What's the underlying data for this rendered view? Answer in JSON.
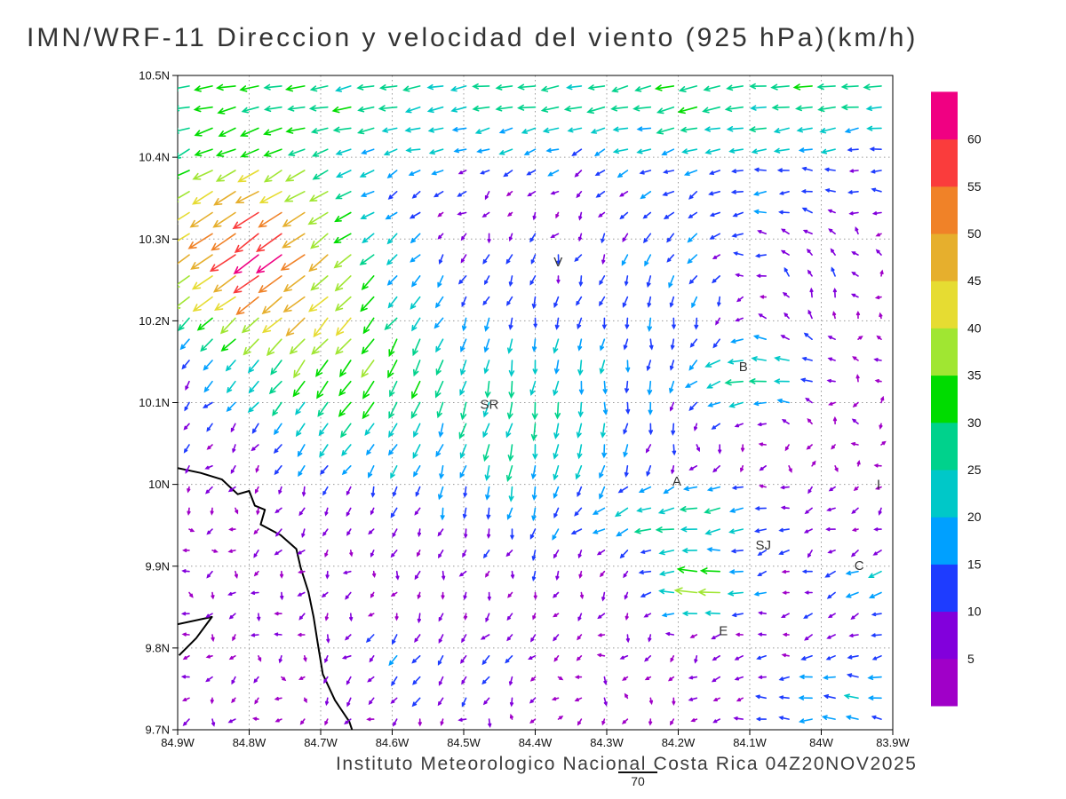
{
  "title": "IMN/WRF-11 Direccion y velocidad del viento (925 hPa)(km/h)",
  "footer": "Instituto Meteorologico Nacional Costa Rica 04Z20NOV2025",
  "annotation": "70",
  "colorbar": {
    "labels": [
      "5",
      "10",
      "15",
      "20",
      "25",
      "30",
      "35",
      "40",
      "45",
      "50",
      "55",
      "60"
    ]
  },
  "chart_data": {
    "type": "vector_field",
    "title": "IMN/WRF-11 Direccion y velocidad del viento (925 hPa)(km/h)",
    "units": "km/h",
    "level": "925 hPa",
    "valid_time": "04Z20NOV2025",
    "lon_range": [
      -84.9,
      -83.9
    ],
    "lat_range": [
      9.7,
      10.5
    ],
    "grid": {
      "nx": 31,
      "ny": 31
    },
    "grid_style": "dotted",
    "legend_position": "right",
    "xticks": {
      "labels": [
        "84.9W",
        "84.8W",
        "84.7W",
        "84.6W",
        "84.5W",
        "84.4W",
        "84.3W",
        "84.2W",
        "84.1W",
        "84W",
        "83.9W"
      ],
      "values": [
        -84.9,
        -84.8,
        -84.7,
        -84.6,
        -84.5,
        -84.4,
        -84.3,
        -84.2,
        -84.1,
        -84.0,
        -83.9
      ]
    },
    "yticks": {
      "labels": [
        "10.5N",
        "10.4N",
        "10.3N",
        "10.2N",
        "10.1N",
        "10N",
        "9.9N",
        "9.8N",
        "9.7N"
      ],
      "values": [
        10.5,
        10.4,
        10.3,
        10.2,
        10.1,
        10.0,
        9.9,
        9.8,
        9.7
      ]
    },
    "speed_levels": [
      5,
      10,
      15,
      20,
      25,
      30,
      35,
      40,
      45,
      50,
      55,
      60
    ],
    "speed_colors": [
      "#a000c8",
      "#8200dc",
      "#1e3cff",
      "#00a0ff",
      "#00c8c8",
      "#00d28c",
      "#00dc00",
      "#a0e632",
      "#e6dc32",
      "#e6af2d",
      "#f08228",
      "#fa3c3c",
      "#f00082"
    ],
    "stations": [
      {
        "label": "V",
        "lon": -84.368,
        "lat": 10.272
      },
      {
        "label": "B",
        "lon": -84.109,
        "lat": 10.144
      },
      {
        "label": "SR",
        "lon": -84.464,
        "lat": 10.098
      },
      {
        "label": "A",
        "lon": -84.202,
        "lat": 10.004
      },
      {
        "label": "SJ",
        "lon": -84.081,
        "lat": 9.926
      },
      {
        "label": "C",
        "lon": -83.947,
        "lat": 9.901
      },
      {
        "label": "E",
        "lon": -84.137,
        "lat": 9.821
      },
      {
        "label": "I",
        "lon": -83.92,
        "lat": 10.0
      }
    ],
    "coastlines": [
      [
        [
          -84.9,
          10.02
        ],
        [
          -84.868,
          10.014
        ],
        [
          -84.838,
          10.006
        ],
        [
          -84.816,
          9.988
        ],
        [
          -84.8,
          9.992
        ],
        [
          -84.792,
          9.974
        ],
        [
          -84.778,
          9.969
        ],
        [
          -84.784,
          9.951
        ],
        [
          -84.756,
          9.938
        ],
        [
          -84.734,
          9.921
        ],
        [
          -84.728,
          9.898
        ],
        [
          -84.717,
          9.868
        ],
        [
          -84.71,
          9.838
        ],
        [
          -84.704,
          9.805
        ],
        [
          -84.697,
          9.768
        ],
        [
          -84.68,
          9.736
        ],
        [
          -84.66,
          9.71
        ],
        [
          -84.653,
          9.692
        ]
      ],
      [
        [
          -84.9,
          9.829
        ],
        [
          -84.852,
          9.838
        ],
        [
          -84.874,
          9.812
        ],
        [
          -84.898,
          9.791
        ]
      ]
    ],
    "flow_model": {
      "base": {
        "u": -2.0,
        "v": -2.5
      },
      "jitter_kmh": 4.0,
      "features": [
        {
          "kind": "gauss",
          "lon": -84.4,
          "lat": 10.48,
          "sx": 99.0,
          "sy": 0.09,
          "u": -24,
          "v": -2
        },
        {
          "kind": "gauss",
          "lon": -84.8,
          "lat": 10.3,
          "sx": 0.16,
          "sy": 0.11,
          "u": -44,
          "v": -28
        },
        {
          "kind": "gauss",
          "lon": -84.68,
          "lat": 10.15,
          "sx": 0.16,
          "sy": 0.12,
          "u": -16,
          "v": -22
        },
        {
          "kind": "gauss",
          "lon": -84.42,
          "lat": 10.08,
          "sx": 0.18,
          "sy": 0.15,
          "u": -2,
          "v": -20
        },
        {
          "kind": "gauss",
          "lon": -84.1,
          "lat": 10.13,
          "sx": 0.1,
          "sy": 0.06,
          "u": -34,
          "v": -2
        },
        {
          "kind": "vortex",
          "lon": -84.12,
          "lat": 10.22,
          "r": 0.15,
          "s": 22
        },
        {
          "kind": "gauss",
          "lon": -84.18,
          "lat": 9.96,
          "sx": 0.14,
          "sy": 0.05,
          "u": -26,
          "v": 0
        },
        {
          "kind": "gauss",
          "lon": -84.16,
          "lat": 9.87,
          "sx": 0.07,
          "sy": 0.04,
          "u": -35,
          "v": 6
        },
        {
          "kind": "gauss",
          "lon": -83.96,
          "lat": 9.74,
          "sx": 0.14,
          "sy": 0.07,
          "u": -16,
          "v": 3
        },
        {
          "kind": "gauss",
          "lon": -84.55,
          "lat": 9.78,
          "sx": 0.12,
          "sy": 0.06,
          "u": -6,
          "v": -8
        },
        {
          "kind": "gauss",
          "lon": -83.93,
          "lat": 9.88,
          "sx": 0.08,
          "sy": 0.05,
          "u": -14,
          "v": -3
        }
      ]
    }
  }
}
